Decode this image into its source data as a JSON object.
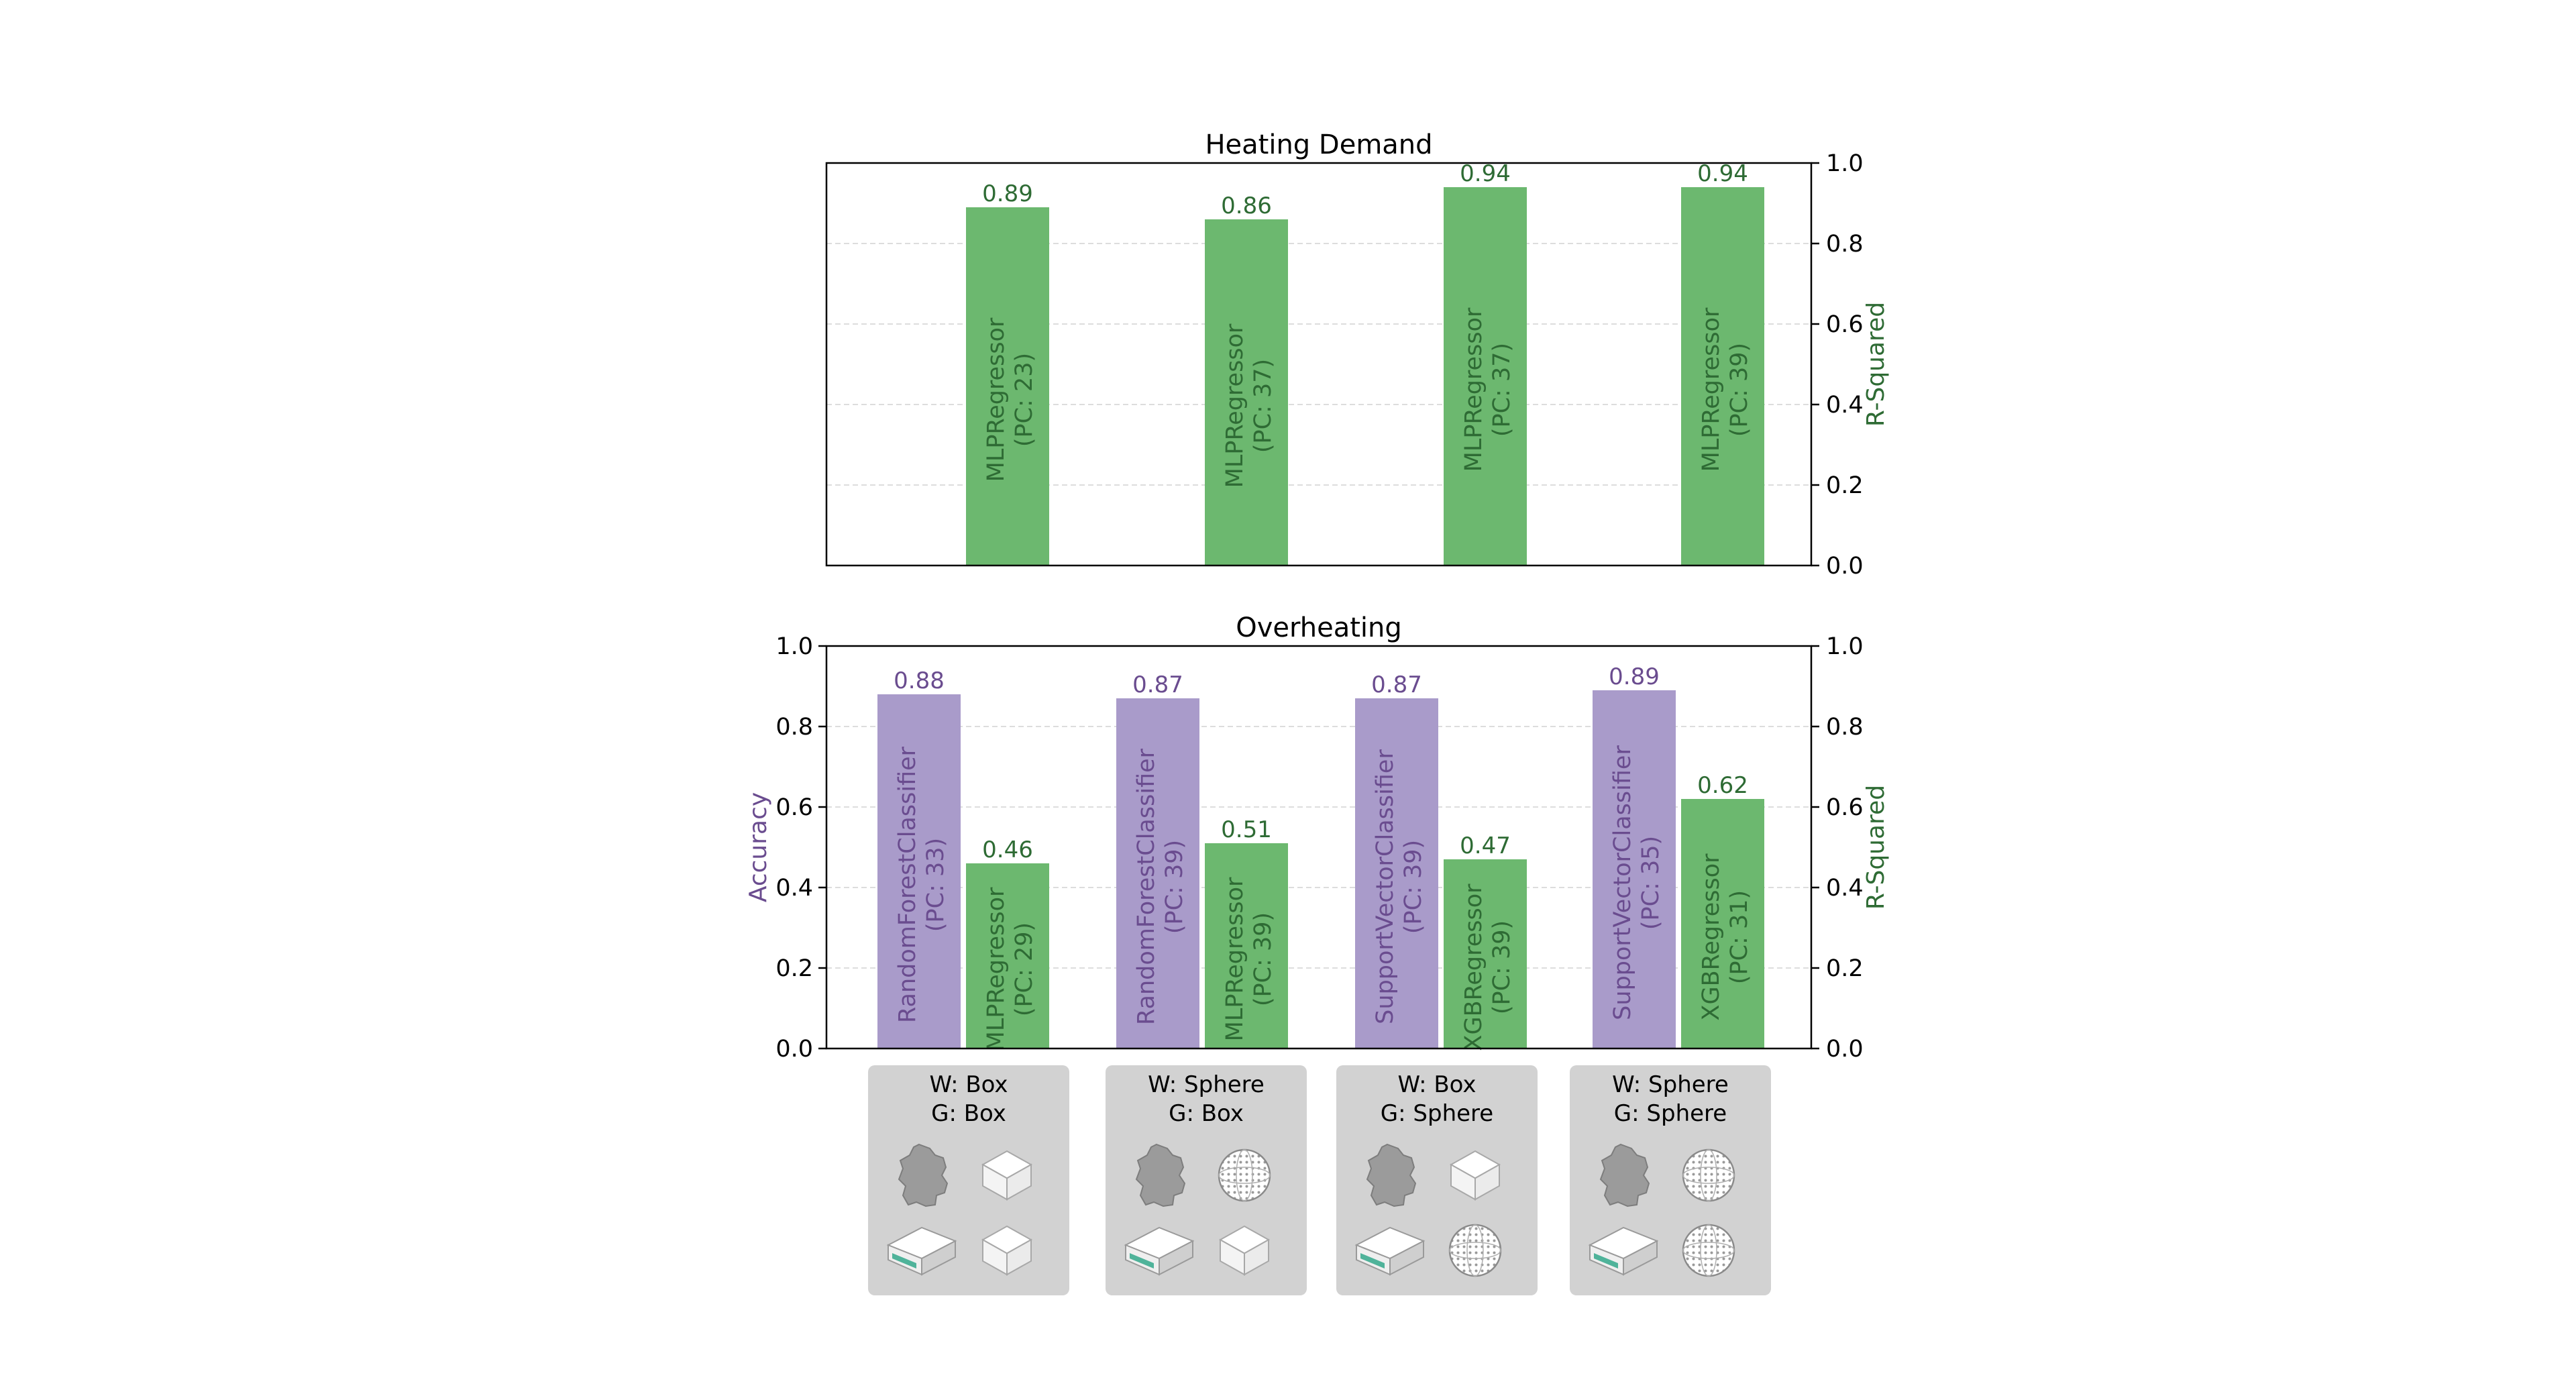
{
  "colors": {
    "accuracy": "#a99bca",
    "accuracy_text": "#6a4c8f",
    "rsquared": "#6cb86f",
    "rsquared_text": "#2e6b34",
    "axis": "#000000",
    "grid": "#dddddd",
    "card": "#d2d2d2"
  },
  "chart_data": [
    {
      "type": "bar",
      "title": "Heating Demand",
      "ylabel_right": "R-Squared",
      "ylim": [
        0,
        1.0
      ],
      "yticks": [
        "0.0",
        "0.2",
        "0.4",
        "0.6",
        "0.8",
        "1.0"
      ],
      "grid": true,
      "series": [
        {
          "metric": "R-Squared",
          "values": [
            0.89,
            0.86,
            0.94,
            0.94
          ],
          "value_labels": [
            "0.89",
            "0.86",
            "0.94",
            "0.94"
          ],
          "bar_labels": [
            [
              "MLPRegressor",
              "(PC: 23)"
            ],
            [
              "MLPRegressor",
              "(PC: 37)"
            ],
            [
              "MLPRegressor",
              "(PC: 37)"
            ],
            [
              "MLPRegressor",
              "(PC: 39)"
            ]
          ]
        }
      ]
    },
    {
      "type": "bar",
      "title": "Overheating",
      "ylabel_left": "Accuracy",
      "ylabel_right": "R-Squared",
      "ylim": [
        0,
        1.0
      ],
      "yticks": [
        "0.0",
        "0.2",
        "0.4",
        "0.6",
        "0.8",
        "1.0"
      ],
      "grid": true,
      "series": [
        {
          "metric": "Accuracy",
          "values": [
            0.88,
            0.87,
            0.87,
            0.89
          ],
          "value_labels": [
            "0.88",
            "0.87",
            "0.87",
            "0.89"
          ],
          "bar_labels": [
            [
              "RandomForestClassifier",
              "(PC: 33)"
            ],
            [
              "RandomForestClassifier",
              "(PC: 39)"
            ],
            [
              "SupportVectorClassifier",
              "(PC: 39)"
            ],
            [
              "SupportVectorClassifier",
              "(PC: 35)"
            ]
          ]
        },
        {
          "metric": "R-Squared",
          "values": [
            0.46,
            0.51,
            0.47,
            0.62
          ],
          "value_labels": [
            "0.46",
            "0.51",
            "0.47",
            "0.62"
          ],
          "bar_labels": [
            [
              "MLPRegressor",
              "(PC: 29)"
            ],
            [
              "MLPRegressor",
              "(PC: 39)"
            ],
            [
              "XGBRegressor",
              "(PC: 39)"
            ],
            [
              "XGBRegressor",
              "(PC: 31)"
            ]
          ]
        }
      ]
    }
  ],
  "scenarios": [
    {
      "line1": "W: Box",
      "line2": "G: Box",
      "weather": "box",
      "geometry": "box"
    },
    {
      "line1": "W: Sphere",
      "line2": "G: Box",
      "weather": "sphere",
      "geometry": "box"
    },
    {
      "line1": "W: Box",
      "line2": "G: Sphere",
      "weather": "box",
      "geometry": "sphere"
    },
    {
      "line1": "W: Sphere",
      "line2": "G: Sphere",
      "weather": "sphere",
      "geometry": "sphere"
    }
  ]
}
